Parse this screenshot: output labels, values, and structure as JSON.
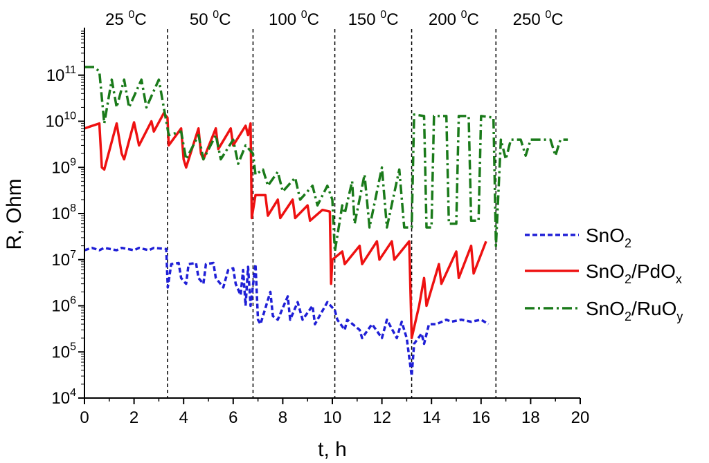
{
  "chart_data": {
    "type": "line",
    "title": "",
    "xlabel": "t, h",
    "ylabel": "R, Ohm",
    "xlim": [
      0,
      20
    ],
    "x_ticks": [
      0,
      2,
      4,
      6,
      8,
      10,
      12,
      14,
      16,
      18,
      20
    ],
    "ylim": [
      10000,
      1000000000000
    ],
    "y_scale": "log",
    "y_tick_exponents": [
      4,
      5,
      6,
      7,
      8,
      9,
      10,
      11
    ],
    "grid": false,
    "legend_position": "right",
    "temperature_boundaries_h": [
      3.35,
      6.8,
      10.1,
      13.2,
      16.6
    ],
    "temperature_zones": [
      {
        "value": "25",
        "unit": "C"
      },
      {
        "value": "50",
        "unit": "C"
      },
      {
        "value": "100",
        "unit": "C"
      },
      {
        "value": "150",
        "unit": "C"
      },
      {
        "value": "200",
        "unit": "C"
      },
      {
        "value": "250",
        "unit": "C"
      }
    ],
    "series": [
      {
        "name": "SnO2",
        "legend": {
          "base": "SnO",
          "sub1": "2",
          "mid": "",
          "sub2": ""
        },
        "color": "#1f1fd6",
        "style": "dashed",
        "points": [
          [
            0,
            16000000.0
          ],
          [
            0.3,
            18000000.0
          ],
          [
            0.6,
            16000000.0
          ],
          [
            0.8,
            18000000.0
          ],
          [
            1.3,
            16000000.0
          ],
          [
            1.5,
            18000000.0
          ],
          [
            2.0,
            16000000.0
          ],
          [
            2.2,
            18000000.0
          ],
          [
            2.6,
            16000000.0
          ],
          [
            2.8,
            18000000.0
          ],
          [
            3.3,
            17000000.0
          ],
          [
            3.36,
            2500000.0
          ],
          [
            3.5,
            8000000.0
          ],
          [
            3.8,
            8500000.0
          ],
          [
            3.9,
            4000000.0
          ],
          [
            4.1,
            3000000.0
          ],
          [
            4.2,
            8000000.0
          ],
          [
            4.5,
            8500000.0
          ],
          [
            4.6,
            4000000.0
          ],
          [
            4.8,
            3000000.0
          ],
          [
            4.9,
            8000000.0
          ],
          [
            5.2,
            8500000.0
          ],
          [
            5.3,
            4000000.0
          ],
          [
            5.6,
            2500000.0
          ],
          [
            5.8,
            6000000.0
          ],
          [
            6.0,
            6500000.0
          ],
          [
            6.1,
            3000000.0
          ],
          [
            6.3,
            1700000.0
          ],
          [
            6.4,
            6000000.0
          ],
          [
            6.5,
            1000000.0
          ],
          [
            6.6,
            7000000.0
          ],
          [
            6.7,
            1000000.0
          ],
          [
            6.9,
            8000000.0
          ],
          [
            7.0,
            500000.0
          ],
          [
            7.1,
            400000.0
          ],
          [
            7.5,
            2000000.0
          ],
          [
            7.6,
            600000.0
          ],
          [
            7.8,
            500000.0
          ],
          [
            8.2,
            1600000.0
          ],
          [
            8.3,
            500000.0
          ],
          [
            8.6,
            1200000.0
          ],
          [
            8.8,
            500000.0
          ],
          [
            9.2,
            1000000.0
          ],
          [
            9.3,
            400000.0
          ],
          [
            9.8,
            1200000.0
          ],
          [
            10.1,
            800000.0
          ],
          [
            10.2,
            500000.0
          ],
          [
            10.5,
            300000.0
          ],
          [
            10.6,
            500000.0
          ],
          [
            11.1,
            300000.0
          ],
          [
            11.2,
            200000.0
          ],
          [
            11.6,
            400000.0
          ],
          [
            12.0,
            200000.0
          ],
          [
            12.2,
            500000.0
          ],
          [
            12.6,
            200000.0
          ],
          [
            12.8,
            450000.0
          ],
          [
            13.0,
            200000.0
          ],
          [
            13.2,
            30000.0
          ],
          [
            13.3,
            150000.0
          ],
          [
            13.6,
            250000.0
          ],
          [
            13.7,
            150000.0
          ],
          [
            13.9,
            400000.0
          ],
          [
            14.2,
            400000.0
          ],
          [
            14.6,
            500000.0
          ],
          [
            14.8,
            450000.0
          ],
          [
            15.2,
            500000.0
          ],
          [
            15.6,
            450000.0
          ],
          [
            16.0,
            500000.0
          ],
          [
            16.3,
            400000.0
          ]
        ]
      },
      {
        "name": "SnO2/PdOx",
        "legend": {
          "base": "SnO",
          "sub1": "2",
          "mid": "/PdO",
          "sub2": "x"
        },
        "color": "#ee1111",
        "style": "solid",
        "points": [
          [
            0,
            7000000000.0
          ],
          [
            0.6,
            9000000000.0
          ],
          [
            0.7,
            1000000000.0
          ],
          [
            0.8,
            900000000.0
          ],
          [
            1.3,
            9000000000.0
          ],
          [
            1.5,
            2000000000.0
          ],
          [
            1.6,
            1500000000.0
          ],
          [
            2.0,
            9500000000.0
          ],
          [
            2.2,
            3000000000.0
          ],
          [
            2.7,
            10000000000.0
          ],
          [
            2.8,
            6000000000.0
          ],
          [
            3.2,
            15000000000.0
          ],
          [
            3.35,
            12000000000.0
          ],
          [
            3.4,
            3000000000.0
          ],
          [
            3.9,
            7000000000.0
          ],
          [
            4.0,
            1500000000.0
          ],
          [
            4.1,
            1000000000.0
          ],
          [
            4.6,
            7000000000.0
          ],
          [
            4.7,
            2000000000.0
          ],
          [
            4.8,
            1500000000.0
          ],
          [
            5.3,
            7000000000.0
          ],
          [
            5.4,
            2500000000.0
          ],
          [
            5.9,
            7000000000.0
          ],
          [
            6.0,
            3000000000.0
          ],
          [
            6.5,
            8000000000.0
          ],
          [
            6.6,
            5000000000.0
          ],
          [
            6.7,
            9000000000.0
          ],
          [
            6.75,
            80000000.0
          ],
          [
            6.9,
            250000000.0
          ],
          [
            7.3,
            250000000.0
          ],
          [
            7.4,
            90000000.0
          ],
          [
            7.8,
            200000000.0
          ],
          [
            7.9,
            80000000.0
          ],
          [
            8.4,
            200000000.0
          ],
          [
            8.5,
            80000000.0
          ],
          [
            9.0,
            150000000.0
          ],
          [
            9.1,
            70000000.0
          ],
          [
            9.6,
            120000000.0
          ],
          [
            9.9,
            110000000.0
          ],
          [
            9.95,
            3000000.0
          ],
          [
            10.0,
            10000000.0
          ],
          [
            10.4,
            15000000.0
          ],
          [
            10.5,
            8000000.0
          ],
          [
            11.1,
            20000000.0
          ],
          [
            11.2,
            8000000.0
          ],
          [
            11.8,
            25000000.0
          ],
          [
            11.9,
            10000000.0
          ],
          [
            12.4,
            25000000.0
          ],
          [
            12.5,
            10000000.0
          ],
          [
            13.1,
            25000000.0
          ],
          [
            13.2,
            200000.0
          ],
          [
            13.5,
            1000000.0
          ],
          [
            13.7,
            4000000.0
          ],
          [
            13.8,
            1000000.0
          ],
          [
            14.3,
            8000000.0
          ],
          [
            14.4,
            3000000.0
          ],
          [
            15.0,
            15000000.0
          ],
          [
            15.1,
            4000000.0
          ],
          [
            15.6,
            20000000.0
          ],
          [
            15.7,
            5000000.0
          ],
          [
            16.2,
            25000000.0
          ]
        ]
      },
      {
        "name": "SnO2/RuOy",
        "legend": {
          "base": "SnO",
          "sub1": "2",
          "mid": "/RuO",
          "sub2": "y"
        },
        "color": "#1a7a1a",
        "style": "dashdot",
        "points": [
          [
            0,
            150000000000.0
          ],
          [
            0.4,
            150000000000.0
          ],
          [
            0.6,
            120000000000.0
          ],
          [
            0.8,
            9000000000.0
          ],
          [
            1.1,
            80000000000.0
          ],
          [
            1.3,
            20000000000.0
          ],
          [
            1.6,
            80000000000.0
          ],
          [
            1.8,
            20000000000.0
          ],
          [
            2.3,
            80000000000.0
          ],
          [
            2.5,
            20000000000.0
          ],
          [
            3.0,
            80000000000.0
          ],
          [
            3.3,
            10000000000.0
          ],
          [
            3.4,
            5000000000.0
          ],
          [
            3.9,
            6000000000.0
          ],
          [
            4.1,
            1500000000.0
          ],
          [
            4.6,
            5000000000.0
          ],
          [
            4.8,
            1500000000.0
          ],
          [
            5.3,
            5000000000.0
          ],
          [
            5.5,
            1500000000.0
          ],
          [
            6.0,
            4000000000.0
          ],
          [
            6.2,
            1200000000.0
          ],
          [
            6.5,
            3000000000.0
          ],
          [
            6.8,
            2000000000.0
          ],
          [
            6.9,
            700000000.0
          ],
          [
            7.2,
            900000000.0
          ],
          [
            7.4,
            400000000.0
          ],
          [
            7.8,
            800000000.0
          ],
          [
            8.0,
            300000000.0
          ],
          [
            8.5,
            600000000.0
          ],
          [
            8.7,
            200000000.0
          ],
          [
            9.2,
            400000000.0
          ],
          [
            9.4,
            150000000.0
          ],
          [
            9.8,
            400000000.0
          ],
          [
            10.0,
            200000000.0
          ],
          [
            10.1,
            15000000.0
          ],
          [
            10.4,
            150000000.0
          ],
          [
            10.5,
            100000000.0
          ],
          [
            10.8,
            500000000.0
          ],
          [
            10.9,
            60000000.0
          ],
          [
            11.3,
            700000000.0
          ],
          [
            11.5,
            50000000.0
          ],
          [
            12.0,
            1000000000.0
          ],
          [
            12.2,
            50000000.0
          ],
          [
            12.7,
            900000000.0
          ],
          [
            12.9,
            50000000.0
          ],
          [
            13.2,
            50000000.0
          ],
          [
            13.3,
            14000000000.0
          ],
          [
            13.7,
            13000000000.0
          ],
          [
            13.8,
            50000000.0
          ],
          [
            14.0,
            50000000.0
          ],
          [
            14.1,
            13000000000.0
          ],
          [
            14.6,
            13000000000.0
          ],
          [
            14.7,
            60000000.0
          ],
          [
            15.0,
            60000000.0
          ],
          [
            15.1,
            13000000000.0
          ],
          [
            15.5,
            13000000000.0
          ],
          [
            15.6,
            70000000.0
          ],
          [
            15.9,
            70000000.0
          ],
          [
            16.0,
            13000000000.0
          ],
          [
            16.5,
            12000000000.0
          ],
          [
            16.6,
            20000000.0
          ],
          [
            16.8,
            4000000000.0
          ],
          [
            17.0,
            1500000000.0
          ],
          [
            17.2,
            4000000000.0
          ],
          [
            17.6,
            4000000000.0
          ],
          [
            17.8,
            1800000000.0
          ],
          [
            18.0,
            4000000000.0
          ],
          [
            18.8,
            4000000000.0
          ],
          [
            19.0,
            1800000000.0
          ],
          [
            19.2,
            4000000000.0
          ],
          [
            19.5,
            4000000000.0
          ]
        ]
      }
    ]
  }
}
